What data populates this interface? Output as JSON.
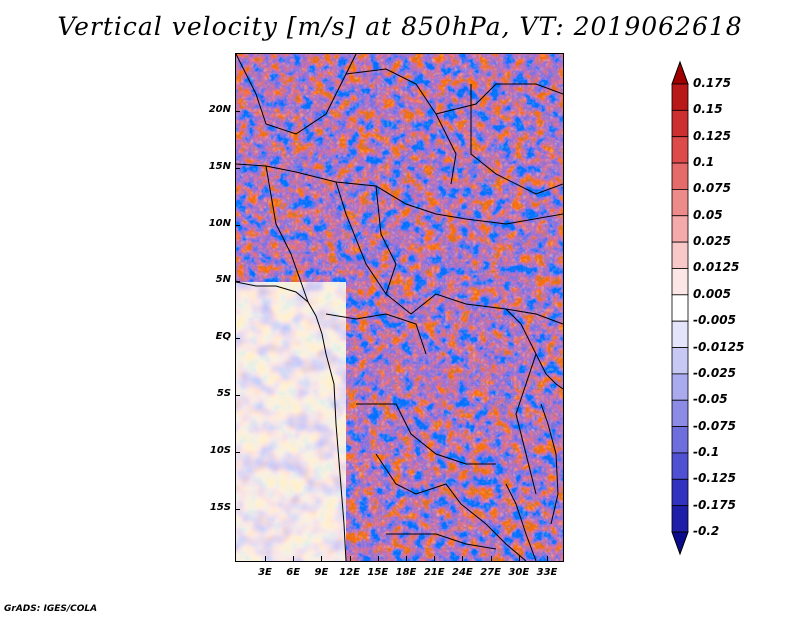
{
  "title": "Vertical velocity [m/s] at 850hPa, VT: 2019062618",
  "footer": "GrADS: IGES/COLA",
  "lat_labels": [
    "20N",
    "15N",
    "10N",
    "5N",
    "EQ",
    "5S",
    "10S",
    "15S"
  ],
  "lon_labels": [
    "3E",
    "6E",
    "9E",
    "12E",
    "15E",
    "18E",
    "21E",
    "24E",
    "27E",
    "30E",
    "33E"
  ],
  "colorbar": {
    "labels": [
      "0.175",
      "0.15",
      "0.125",
      "0.1",
      "0.075",
      "0.05",
      "0.025",
      "0.0125",
      "0.005",
      "-0.005",
      "-0.0125",
      "-0.025",
      "-0.05",
      "-0.075",
      "-0.1",
      "-0.125",
      "-0.175",
      "-0.2"
    ],
    "colors": [
      "#a00000",
      "#b81818",
      "#cc3030",
      "#dd4a4a",
      "#e56a6a",
      "#ed8a8a",
      "#f4aaaa",
      "#f8c8c8",
      "#fce6e6",
      "#ffffff",
      "#e4e4fa",
      "#c8c8f4",
      "#aaaaee",
      "#8c8ce6",
      "#6e6edc",
      "#5050d2",
      "#3232c0",
      "#1e1ea8",
      "#0a0a8c"
    ]
  },
  "map": {
    "ocean_tint": "#cfd3f2",
    "land_tint": "#c4c4ec"
  }
}
